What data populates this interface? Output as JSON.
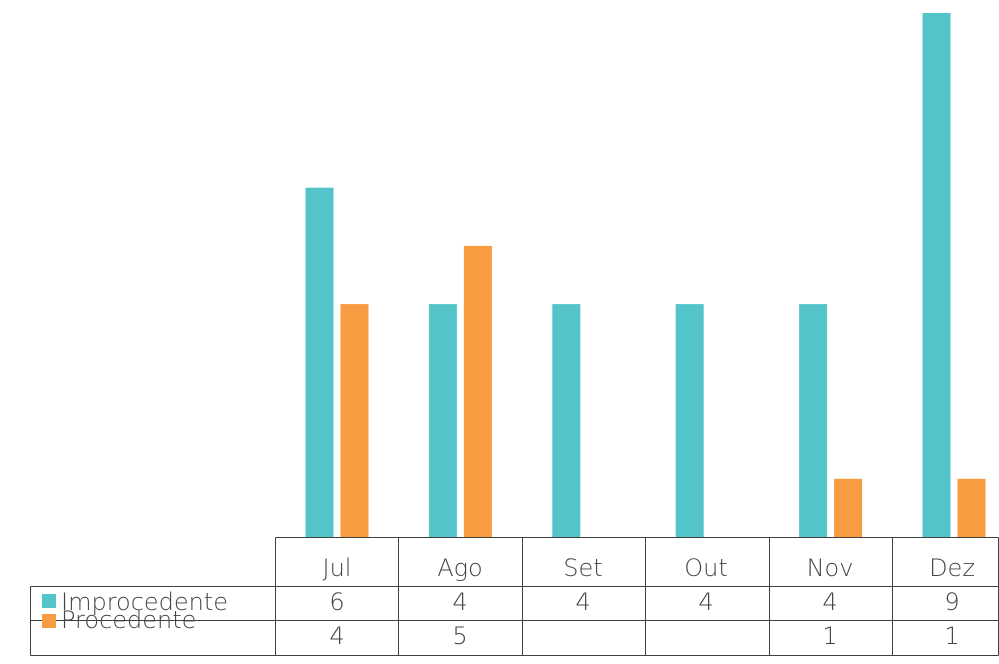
{
  "chart_data": {
    "type": "bar",
    "title": "",
    "xlabel": "",
    "ylabel": "",
    "categories": [
      "Jul",
      "Ago",
      "Set",
      "Out",
      "Nov",
      "Dez"
    ],
    "series": [
      {
        "name": "Improcedente",
        "color": "#53c4c9",
        "values": [
          6,
          4,
          4,
          4,
          4,
          9
        ],
        "table_labels": [
          "6",
          "4",
          "4",
          "4",
          "4",
          "9"
        ]
      },
      {
        "name": "Procedente",
        "color": "#f79c40",
        "values": [
          4,
          5,
          null,
          null,
          1,
          1
        ],
        "table_labels": [
          "4",
          "5",
          "",
          "",
          "1",
          "1"
        ]
      }
    ],
    "ylim": [
      0,
      9
    ],
    "grid": false,
    "legend": "data-table"
  }
}
